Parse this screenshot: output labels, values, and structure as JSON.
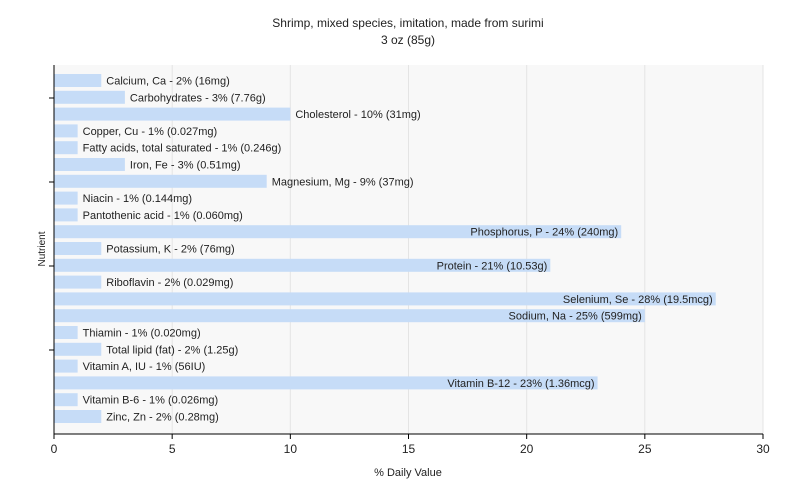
{
  "chart_data": {
    "type": "bar",
    "orientation": "horizontal",
    "title": "Shrimp, mixed species, imitation, made from surimi",
    "subtitle": "3 oz (85g)",
    "xlabel": "% Daily Value",
    "ylabel": "Nutrient",
    "xlim": [
      0,
      30
    ],
    "xticks": [
      0,
      5,
      10,
      15,
      20,
      25,
      30
    ],
    "grid": true,
    "legend": "none",
    "bar_color": "#c6dcf7",
    "categories": [
      "Calcium, Ca",
      "Carbohydrates",
      "Cholesterol",
      "Copper, Cu",
      "Fatty acids, total saturated",
      "Iron, Fe",
      "Magnesium, Mg",
      "Niacin",
      "Pantothenic acid",
      "Phosphorus, P",
      "Potassium, K",
      "Protein",
      "Riboflavin",
      "Selenium, Se",
      "Sodium, Na",
      "Thiamin",
      "Total lipid (fat)",
      "Vitamin A, IU",
      "Vitamin B-12",
      "Vitamin B-6",
      "Zinc, Zn"
    ],
    "values": [
      2,
      3,
      10,
      1,
      1,
      3,
      9,
      1,
      1,
      24,
      2,
      21,
      2,
      28,
      25,
      1,
      2,
      1,
      23,
      1,
      2
    ],
    "bar_labels": [
      "Calcium, Ca - 2% (16mg)",
      "Carbohydrates - 3% (7.76g)",
      "Cholesterol - 10% (31mg)",
      "Copper, Cu - 1% (0.027mg)",
      "Fatty acids, total saturated - 1% (0.246g)",
      "Iron, Fe - 3% (0.51mg)",
      "Magnesium, Mg - 9% (37mg)",
      "Niacin - 1% (0.144mg)",
      "Pantothenic acid - 1% (0.060mg)",
      "Phosphorus, P - 24% (240mg)",
      "Potassium, K - 2% (76mg)",
      "Protein - 21% (10.53g)",
      "Riboflavin - 2% (0.029mg)",
      "Selenium, Se - 28% (19.5mcg)",
      "Sodium, Na - 25% (599mg)",
      "Thiamin - 1% (0.020mg)",
      "Total lipid (fat) - 2% (1.25g)",
      "Vitamin A, IU - 1% (56IU)",
      "Vitamin B-12 - 23% (1.36mcg)",
      "Vitamin B-6 - 1% (0.026mg)",
      "Zinc, Zn - 2% (0.28mg)"
    ]
  }
}
